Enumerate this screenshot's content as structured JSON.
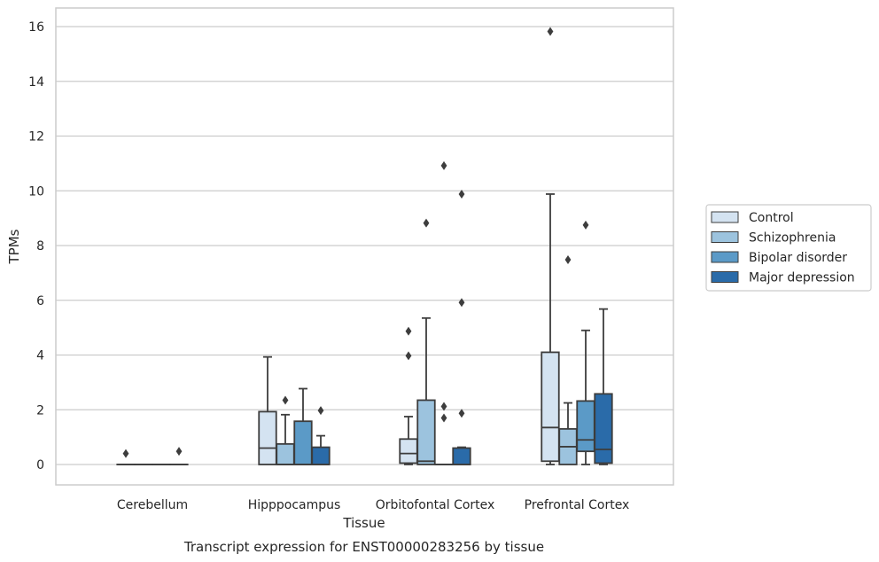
{
  "chart_data": {
    "type": "box",
    "title": "",
    "caption": "Transcript expression for ENST00000283256 by tissue",
    "xlabel": "Tissue",
    "ylabel": "TPMs",
    "ylim": [
      -0.75,
      16.6
    ],
    "yticks": [
      0,
      2,
      4,
      6,
      8,
      10,
      12,
      14,
      16
    ],
    "ytick_labels": [
      "0",
      "2",
      "4",
      "6",
      "8",
      "10",
      "12",
      "14",
      "16"
    ],
    "grid": "horizontal",
    "legend_position": "right",
    "categories": [
      "Cerebellum",
      "Hipppocampus",
      "Orbitofontal Cortex",
      "Prefrontal Cortex"
    ],
    "series": [
      {
        "name": "Control",
        "color": "#d4e3f1",
        "boxes": [
          {
            "q1": 0,
            "median": 0,
            "q3": 0,
            "whisker_low": 0,
            "whisker_high": 0,
            "outliers": [
              0.4
            ]
          },
          {
            "q1": 0,
            "median": 0.6,
            "q3": 1.93,
            "whisker_low": 0,
            "whisker_high": 3.93,
            "outliers": []
          },
          {
            "q1": 0.05,
            "median": 0.4,
            "q3": 0.93,
            "whisker_low": 0,
            "whisker_high": 1.75,
            "outliers": [
              3.97,
              4.87
            ]
          },
          {
            "q1": 0.12,
            "median": 1.35,
            "q3": 4.1,
            "whisker_low": 0,
            "whisker_high": 9.88,
            "outliers": [
              15.82
            ]
          }
        ]
      },
      {
        "name": "Schizophrenia",
        "color": "#9cc3de",
        "boxes": [
          {
            "q1": 0,
            "median": 0,
            "q3": 0,
            "whisker_low": 0,
            "whisker_high": 0,
            "outliers": []
          },
          {
            "q1": 0,
            "median": 0,
            "q3": 0.75,
            "whisker_low": 0,
            "whisker_high": 1.82,
            "outliers": [
              2.35
            ]
          },
          {
            "q1": 0,
            "median": 0.12,
            "q3": 2.35,
            "whisker_low": 0,
            "whisker_high": 5.35,
            "outliers": [
              8.82
            ]
          },
          {
            "q1": 0,
            "median": 0.65,
            "q3": 1.3,
            "whisker_low": 0,
            "whisker_high": 2.25,
            "outliers": [
              7.48
            ]
          }
        ]
      },
      {
        "name": "Bipolar disorder",
        "color": "#5b9ac7",
        "boxes": [
          {
            "q1": 0,
            "median": 0,
            "q3": 0,
            "whisker_low": 0,
            "whisker_high": 0,
            "outliers": []
          },
          {
            "q1": 0,
            "median": 0,
            "q3": 1.58,
            "whisker_low": 0,
            "whisker_high": 2.77,
            "outliers": []
          },
          {
            "q1": 0,
            "median": 0,
            "q3": 0,
            "whisker_low": 0,
            "whisker_high": 0,
            "outliers": [
              1.7,
              2.12,
              10.92
            ]
          },
          {
            "q1": 0.48,
            "median": 0.9,
            "q3": 2.32,
            "whisker_low": 0,
            "whisker_high": 4.9,
            "outliers": [
              8.75
            ]
          }
        ]
      },
      {
        "name": "Major depression",
        "color": "#2a6ba9",
        "boxes": [
          {
            "q1": 0,
            "median": 0,
            "q3": 0,
            "whisker_low": 0,
            "whisker_high": 0,
            "outliers": [
              0.48
            ]
          },
          {
            "q1": 0,
            "median": 0,
            "q3": 0.63,
            "whisker_low": 0,
            "whisker_high": 1.05,
            "outliers": [
              1.97
            ]
          },
          {
            "q1": 0,
            "median": 0,
            "q3": 0.6,
            "whisker_low": 0,
            "whisker_high": 0.63,
            "outliers": [
              1.87,
              5.92,
              9.88
            ]
          },
          {
            "q1": 0.05,
            "median": 0.55,
            "q3": 2.58,
            "whisker_low": 0,
            "whisker_high": 5.68,
            "outliers": []
          }
        ]
      }
    ]
  }
}
